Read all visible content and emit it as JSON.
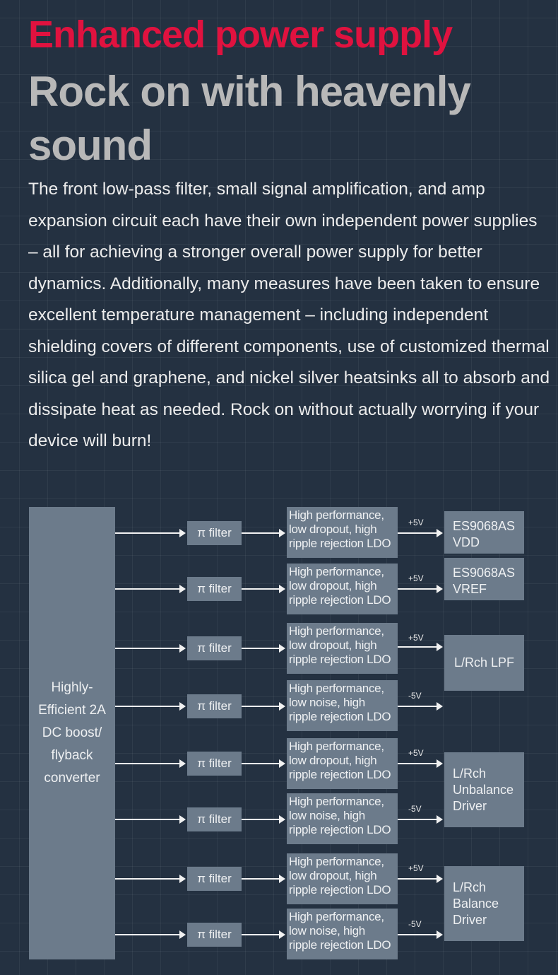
{
  "heading": {
    "title": "Enhanced power supply",
    "subtitle": "Rock on with heavenly sound"
  },
  "description": "The front low-pass filter, small signal amplification, and amp expansion circuit each have their own independent power supplies – all for achieving a stronger overall power supply for better dynamics. Additionally, many measures have been taken to ensure excellent temperature management – including independent shielding covers of different components, use of customized thermal silica gel and graphene, and nickel silver heatsinks all to absorb and dissipate heat as needed. Rock on without actually worrying if your device will burn!",
  "colors": {
    "title": "#e0123f",
    "subtitle": "#b8b8b8",
    "background": "#243141",
    "box": "#6c7b8b"
  },
  "diagram": {
    "source": "Highly-Efficient 2A DC boost/ flyback converter",
    "rows": [
      {
        "filter": "π filter",
        "ldo": "High performance, low dropout, high ripple rejection LDO",
        "voltage": "+5V"
      },
      {
        "filter": "π filter",
        "ldo": "High performance, low dropout, high ripple rejection LDO",
        "voltage": "+5V"
      },
      {
        "filter": "π filter",
        "ldo": "High performance, low dropout, high ripple rejection LDO",
        "voltage": "+5V"
      },
      {
        "filter": "π filter",
        "ldo": "High performance, low noise, high ripple rejection LDO",
        "voltage": "-5V"
      },
      {
        "filter": "π filter",
        "ldo": "High performance, low dropout, high ripple rejection LDO",
        "voltage": "+5V"
      },
      {
        "filter": "π filter",
        "ldo": "High performance, low noise, high ripple rejection LDO",
        "voltage": "-5V"
      },
      {
        "filter": "π filter",
        "ldo": "High performance, low dropout, high ripple rejection LDO",
        "voltage": "+5V"
      },
      {
        "filter": "π filter",
        "ldo": "High performance, low noise, high ripple rejection LDO",
        "voltage": "-5V"
      }
    ],
    "outputs": [
      "ES9068AS VDD",
      "ES9068AS VREF",
      "L/Rch LPF",
      "L/Rch Unbalance Driver",
      "L/Rch Balance Driver"
    ]
  }
}
